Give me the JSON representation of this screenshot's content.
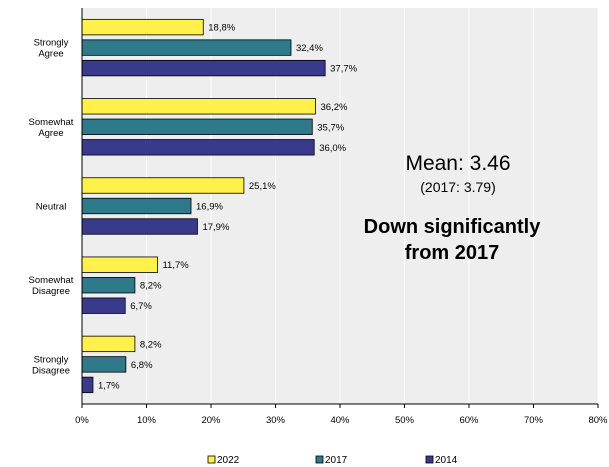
{
  "chart_data": {
    "type": "bar",
    "orientation": "horizontal",
    "categories": [
      [
        "Strongly",
        "Agree"
      ],
      [
        "Somewhat",
        "Agree"
      ],
      [
        "Neutral"
      ],
      [
        "Somewhat",
        "Disagree"
      ],
      [
        "Strongly",
        "Disagree"
      ]
    ],
    "series": [
      {
        "name": "2022",
        "color": "#FFF04A",
        "values": [
          18.8,
          36.2,
          25.1,
          11.7,
          8.2
        ],
        "labels": [
          "18,8%",
          "36,2%",
          "25,1%",
          "11,7%",
          "8,2%"
        ]
      },
      {
        "name": "2017",
        "color": "#2E7A8A",
        "values": [
          32.4,
          35.7,
          16.9,
          8.2,
          6.8
        ],
        "labels": [
          "32,4%",
          "35,7%",
          "16,9%",
          "8,2%",
          "6,8%"
        ]
      },
      {
        "name": "2014",
        "color": "#3A3A8C",
        "values": [
          37.7,
          36.0,
          17.9,
          6.7,
          1.7
        ],
        "labels": [
          "37,7%",
          "36,0%",
          "17,9%",
          "6,7%",
          "1,7%"
        ]
      }
    ],
    "xlim": [
      0,
      80
    ],
    "x_ticks": [
      "0%",
      "10%",
      "20%",
      "30%",
      "40%",
      "50%",
      "60%",
      "70%",
      "80%"
    ],
    "grid": true,
    "legend_position": "bottom",
    "annotations": {
      "mean": "Mean:  3.46",
      "previous_mean": "(2017: 3.79)",
      "note_line1": "Down significantly",
      "note_line2": "from 2017"
    }
  }
}
